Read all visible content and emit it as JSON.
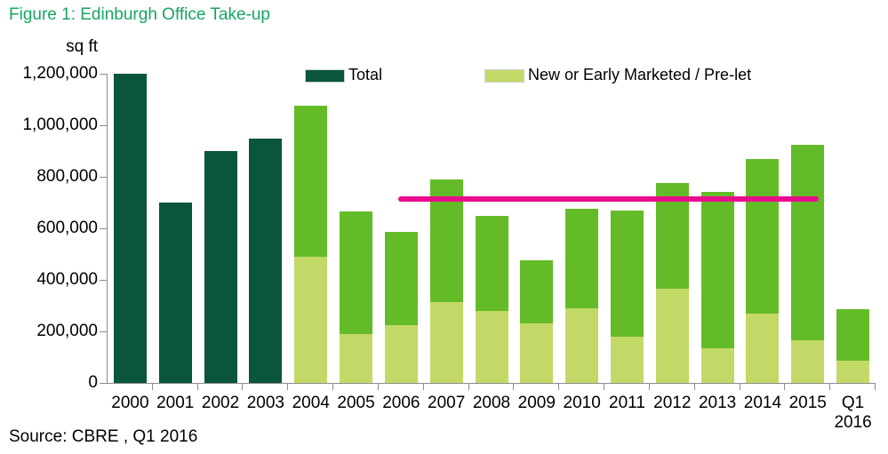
{
  "chart_data": {
    "type": "bar",
    "stacked": true,
    "title": "Figure 1: Edinburgh Office Take-up",
    "ylabel": "sq ft",
    "source": "Source: CBRE , Q1 2016",
    "ylim": [
      0,
      1200000
    ],
    "grid": false,
    "legend_position": "top",
    "ytick_values": [
      0,
      200000,
      400000,
      600000,
      800000,
      1000000,
      1200000
    ],
    "ytick_labels": [
      "0",
      "200,000",
      "400,000",
      "600,000",
      "800,000",
      "1,000,000",
      "1,200,000"
    ],
    "categories": [
      "2000",
      "2001",
      "2002",
      "2003",
      "2004",
      "2005",
      "2006",
      "2007",
      "2008",
      "2009",
      "2010",
      "2011",
      "2012",
      "2013",
      "2014",
      "2015",
      "Q1\n2016"
    ],
    "series": [
      {
        "name": "Total",
        "color": "#09553E",
        "values": [
          1200000,
          700000,
          900000,
          950000,
          1075000,
          665000,
          585000,
          790000,
          650000,
          475000,
          675000,
          670000,
          775000,
          740000,
          870000,
          925000,
          285000
        ]
      },
      {
        "name": "New or Early Marketed / Pre-let",
        "color": "#C3D967",
        "values": [
          null,
          null,
          null,
          null,
          490000,
          190000,
          225000,
          315000,
          280000,
          230000,
          290000,
          180000,
          365000,
          135000,
          270000,
          165000,
          85000
        ]
      }
    ],
    "segment_color_above_prelet": "#64BB28",
    "average_line": {
      "value": 715000,
      "start_category_index": 6,
      "end_category_index": 15,
      "color": "#EA0B8C"
    },
    "colors": {
      "title": "#17A563",
      "axis": "#8c8c8c",
      "text": "#000000"
    }
  }
}
